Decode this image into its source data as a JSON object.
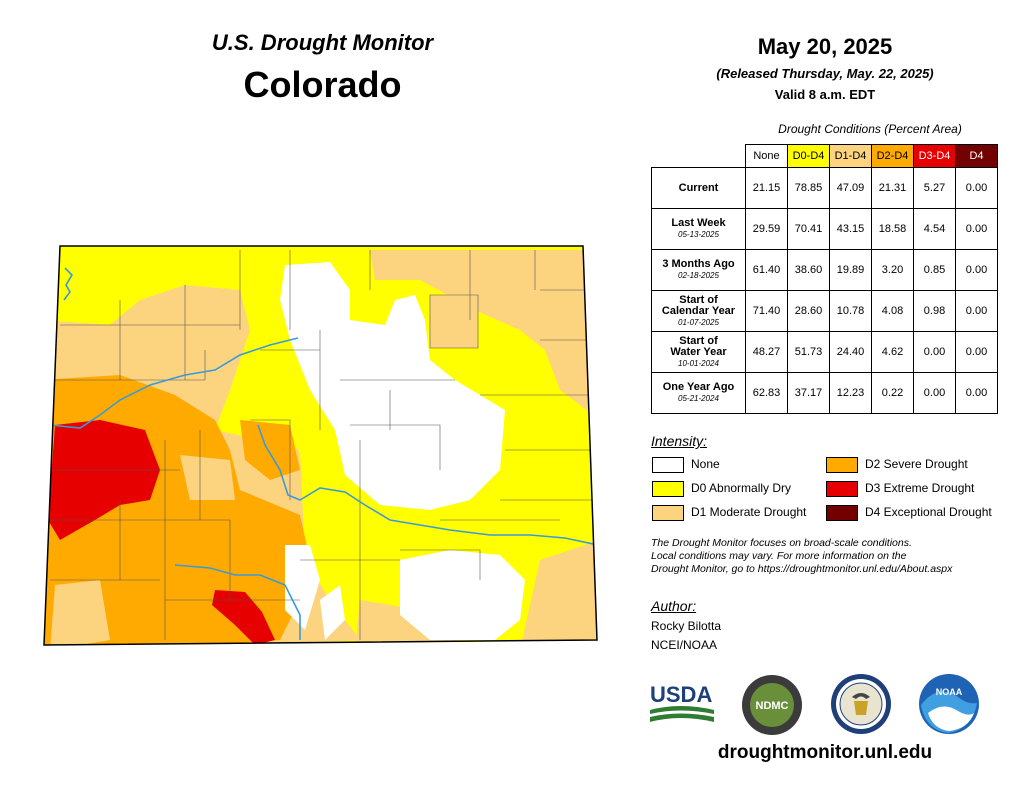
{
  "header": {
    "title_line1": "U.S. Drought Monitor",
    "title_line2": "Colorado",
    "date": "May 20, 2025",
    "released": "(Released Thursday, May. 22, 2025)",
    "valid": "Valid 8 a.m. EDT"
  },
  "table": {
    "caption": "Drought Conditions (Percent Area)",
    "columns": [
      {
        "label": "None",
        "bg": "#ffffff",
        "fg": "#000000"
      },
      {
        "label": "D0-D4",
        "bg": "#ffff00",
        "fg": "#000000"
      },
      {
        "label": "D1-D4",
        "bg": "#fcd37f",
        "fg": "#000000"
      },
      {
        "label": "D2-D4",
        "bg": "#ffaa00",
        "fg": "#000000"
      },
      {
        "label": "D3-D4",
        "bg": "#e60000",
        "fg": "#ffffff"
      },
      {
        "label": "D4",
        "bg": "#730000",
        "fg": "#ffffff"
      }
    ],
    "rows": [
      {
        "label": "Current",
        "label2": "",
        "date": "",
        "values": [
          "21.15",
          "78.85",
          "47.09",
          "21.31",
          "5.27",
          "0.00"
        ]
      },
      {
        "label": "Last Week",
        "label2": "",
        "date": "05-13-2025",
        "values": [
          "29.59",
          "70.41",
          "43.15",
          "18.58",
          "4.54",
          "0.00"
        ]
      },
      {
        "label": "3 Months Ago",
        "label2": "",
        "date": "02-18-2025",
        "values": [
          "61.40",
          "38.60",
          "19.89",
          "3.20",
          "0.85",
          "0.00"
        ]
      },
      {
        "label": "Start of",
        "label2": "Calendar Year",
        "date": "01-07-2025",
        "values": [
          "71.40",
          "28.60",
          "10.78",
          "4.08",
          "0.98",
          "0.00"
        ]
      },
      {
        "label": "Start of",
        "label2": "Water Year",
        "date": "10-01-2024",
        "values": [
          "48.27",
          "51.73",
          "24.40",
          "4.62",
          "0.00",
          "0.00"
        ]
      },
      {
        "label": "One Year Ago",
        "label2": "",
        "date": "05-21-2024",
        "values": [
          "62.83",
          "37.17",
          "12.23",
          "0.22",
          "0.00",
          "0.00"
        ]
      }
    ]
  },
  "legend": {
    "title": "Intensity:",
    "items": [
      {
        "label": "None",
        "color": "#ffffff"
      },
      {
        "label": "D0 Abnormally Dry",
        "color": "#ffff00"
      },
      {
        "label": "D1 Moderate Drought",
        "color": "#fcd37f"
      },
      {
        "label": "D2 Severe Drought",
        "color": "#ffaa00"
      },
      {
        "label": "D3 Extreme Drought",
        "color": "#e60000"
      },
      {
        "label": "D4 Exceptional Drought",
        "color": "#730000"
      }
    ]
  },
  "note": {
    "line1": "The Drought Monitor focuses on broad-scale conditions.",
    "line2": "Local conditions may vary. For more information on the",
    "line3": "Drought Monitor, go to https://droughtmonitor.unl.edu/About.aspx"
  },
  "author": {
    "title": "Author:",
    "name": "Rocky Bilotta",
    "org": "NCEI/NOAA"
  },
  "logos": {
    "usda": "USDA",
    "ndmc": "NDMC",
    "noaa": "NOAA"
  },
  "footer_url": "droughtmonitor.unl.edu"
}
